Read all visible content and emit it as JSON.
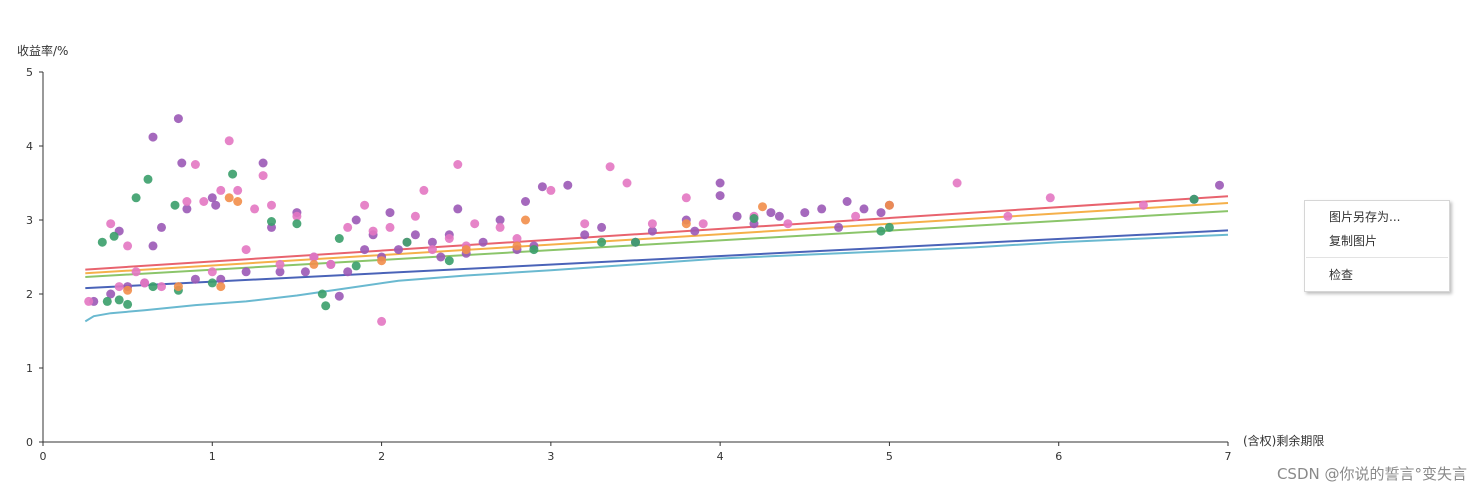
{
  "chart_data": {
    "type": "scatter",
    "ylabel": "收益率/%",
    "xlabel": "(含权)剩余期限",
    "xlim": [
      0,
      7
    ],
    "ylim": [
      0,
      5
    ],
    "x_ticks": [
      "0",
      "1",
      "2",
      "3",
      "4",
      "5",
      "6",
      "7"
    ],
    "y_ticks": [
      "0",
      "1",
      "2",
      "3",
      "4",
      "5"
    ],
    "grid": false,
    "series": [
      {
        "color": "#9b59b6",
        "points": [
          [
            0.3,
            1.9
          ],
          [
            0.4,
            2.0
          ],
          [
            0.45,
            2.85
          ],
          [
            0.5,
            2.1
          ],
          [
            0.6,
            2.15
          ],
          [
            0.65,
            2.65
          ],
          [
            0.65,
            4.12
          ],
          [
            0.7,
            2.9
          ],
          [
            0.8,
            4.37
          ],
          [
            0.82,
            3.77
          ],
          [
            0.85,
            3.15
          ],
          [
            0.9,
            2.2
          ],
          [
            1.0,
            3.3
          ],
          [
            1.02,
            3.2
          ],
          [
            1.05,
            2.2
          ],
          [
            1.2,
            2.3
          ],
          [
            1.3,
            3.77
          ],
          [
            1.35,
            2.9
          ],
          [
            1.4,
            2.3
          ],
          [
            1.5,
            3.1
          ],
          [
            1.55,
            2.3
          ],
          [
            1.6,
            2.5
          ],
          [
            1.7,
            2.4
          ],
          [
            1.75,
            1.97
          ],
          [
            1.8,
            2.3
          ],
          [
            1.85,
            3.0
          ],
          [
            1.9,
            2.6
          ],
          [
            1.95,
            2.8
          ],
          [
            2.0,
            2.5
          ],
          [
            2.05,
            3.1
          ],
          [
            2.1,
            2.6
          ],
          [
            2.2,
            2.8
          ],
          [
            2.3,
            2.7
          ],
          [
            2.35,
            2.5
          ],
          [
            2.4,
            2.8
          ],
          [
            2.45,
            3.15
          ],
          [
            2.5,
            2.55
          ],
          [
            2.6,
            2.7
          ],
          [
            2.7,
            3.0
          ],
          [
            2.8,
            2.6
          ],
          [
            2.85,
            3.25
          ],
          [
            2.9,
            2.65
          ],
          [
            2.95,
            3.45
          ],
          [
            3.1,
            3.47
          ],
          [
            3.2,
            2.8
          ],
          [
            3.3,
            2.9
          ],
          [
            3.5,
            2.7
          ],
          [
            3.6,
            2.85
          ],
          [
            3.8,
            3.0
          ],
          [
            3.85,
            2.85
          ],
          [
            4.0,
            3.5
          ],
          [
            4.0,
            3.33
          ],
          [
            4.1,
            3.05
          ],
          [
            4.2,
            2.95
          ],
          [
            4.3,
            3.1
          ],
          [
            4.35,
            3.05
          ],
          [
            4.5,
            3.1
          ],
          [
            4.6,
            3.15
          ],
          [
            4.7,
            2.9
          ],
          [
            4.75,
            3.25
          ],
          [
            4.85,
            3.15
          ],
          [
            4.95,
            3.1
          ],
          [
            5.0,
            3.2
          ],
          [
            6.8,
            3.28
          ],
          [
            6.95,
            3.47
          ]
        ]
      },
      {
        "color": "#e377c2",
        "points": [
          [
            0.27,
            1.9
          ],
          [
            0.4,
            2.95
          ],
          [
            0.45,
            2.1
          ],
          [
            0.5,
            2.65
          ],
          [
            0.55,
            2.3
          ],
          [
            0.6,
            2.15
          ],
          [
            0.7,
            2.1
          ],
          [
            0.85,
            3.25
          ],
          [
            0.9,
            3.75
          ],
          [
            0.95,
            3.25
          ],
          [
            1.0,
            2.3
          ],
          [
            1.05,
            3.4
          ],
          [
            1.1,
            4.07
          ],
          [
            1.15,
            3.4
          ],
          [
            1.2,
            2.6
          ],
          [
            1.25,
            3.15
          ],
          [
            1.3,
            3.6
          ],
          [
            1.35,
            3.2
          ],
          [
            1.4,
            2.4
          ],
          [
            1.5,
            3.05
          ],
          [
            1.6,
            2.5
          ],
          [
            1.7,
            2.4
          ],
          [
            1.8,
            2.9
          ],
          [
            1.9,
            3.2
          ],
          [
            1.95,
            2.85
          ],
          [
            2.0,
            1.63
          ],
          [
            2.05,
            2.9
          ],
          [
            2.15,
            2.7
          ],
          [
            2.2,
            3.05
          ],
          [
            2.25,
            3.4
          ],
          [
            2.3,
            2.6
          ],
          [
            2.4,
            2.75
          ],
          [
            2.45,
            3.75
          ],
          [
            2.5,
            2.65
          ],
          [
            2.55,
            2.95
          ],
          [
            2.7,
            2.9
          ],
          [
            2.8,
            2.75
          ],
          [
            3.0,
            3.4
          ],
          [
            3.2,
            2.95
          ],
          [
            3.35,
            3.72
          ],
          [
            3.45,
            3.5
          ],
          [
            3.6,
            2.95
          ],
          [
            3.8,
            3.3
          ],
          [
            3.9,
            2.95
          ],
          [
            4.2,
            3.05
          ],
          [
            4.4,
            2.95
          ],
          [
            4.8,
            3.05
          ],
          [
            5.4,
            3.5
          ],
          [
            5.7,
            3.05
          ],
          [
            5.95,
            3.3
          ],
          [
            6.5,
            3.2
          ]
        ]
      },
      {
        "color": "#3a9e6a",
        "points": [
          [
            0.35,
            2.7
          ],
          [
            0.38,
            1.9
          ],
          [
            0.42,
            2.78
          ],
          [
            0.45,
            1.92
          ],
          [
            0.5,
            1.86
          ],
          [
            0.55,
            3.3
          ],
          [
            0.62,
            3.55
          ],
          [
            0.65,
            2.1
          ],
          [
            0.78,
            3.2
          ],
          [
            0.8,
            2.05
          ],
          [
            1.0,
            2.15
          ],
          [
            1.12,
            3.62
          ],
          [
            1.35,
            2.98
          ],
          [
            1.5,
            2.95
          ],
          [
            1.65,
            2.0
          ],
          [
            1.67,
            1.84
          ],
          [
            1.75,
            2.75
          ],
          [
            1.85,
            2.38
          ],
          [
            2.15,
            2.7
          ],
          [
            2.4,
            2.45
          ],
          [
            2.9,
            2.6
          ],
          [
            3.3,
            2.7
          ],
          [
            3.5,
            2.7
          ],
          [
            4.2,
            3.02
          ],
          [
            4.95,
            2.85
          ],
          [
            5.0,
            2.9
          ],
          [
            6.8,
            3.28
          ]
        ]
      },
      {
        "color": "#f28e4a",
        "points": [
          [
            0.5,
            2.05
          ],
          [
            0.8,
            2.1
          ],
          [
            1.05,
            2.1
          ],
          [
            1.1,
            3.3
          ],
          [
            1.15,
            3.25
          ],
          [
            1.6,
            2.4
          ],
          [
            2.0,
            2.45
          ],
          [
            2.5,
            2.6
          ],
          [
            2.8,
            2.65
          ],
          [
            2.85,
            3.0
          ],
          [
            3.8,
            2.95
          ],
          [
            4.25,
            3.18
          ],
          [
            5.0,
            3.2
          ]
        ]
      }
    ],
    "lines": [
      {
        "color": "#e8636e",
        "points": [
          [
            0.25,
            2.33
          ],
          [
            7.0,
            3.32
          ]
        ]
      },
      {
        "color": "#f5b04a",
        "points": [
          [
            0.25,
            2.28
          ],
          [
            7.0,
            3.23
          ]
        ]
      },
      {
        "color": "#8bc56a",
        "points": [
          [
            0.25,
            2.23
          ],
          [
            7.0,
            3.12
          ]
        ]
      },
      {
        "color": "#4a63b8",
        "points": [
          [
            0.25,
            2.08
          ],
          [
            7.0,
            2.86
          ]
        ]
      },
      {
        "color": "#6ab9d0",
        "points": [
          [
            0.25,
            1.63
          ],
          [
            0.3,
            1.7
          ],
          [
            0.4,
            1.74
          ],
          [
            0.6,
            1.78
          ],
          [
            0.9,
            1.85
          ],
          [
            1.2,
            1.9
          ],
          [
            1.5,
            1.98
          ],
          [
            1.8,
            2.08
          ],
          [
            2.1,
            2.18
          ],
          [
            2.5,
            2.25
          ],
          [
            3.0,
            2.32
          ],
          [
            3.5,
            2.4
          ],
          [
            4.0,
            2.48
          ],
          [
            4.5,
            2.53
          ],
          [
            5.0,
            2.58
          ],
          [
            5.5,
            2.63
          ],
          [
            6.0,
            2.7
          ],
          [
            6.5,
            2.75
          ],
          [
            7.0,
            2.8
          ]
        ]
      }
    ]
  },
  "context_menu": {
    "items": [
      "图片另存为...",
      "复制图片",
      "检查"
    ]
  },
  "watermark": "CSDN @你说的誓言°变失言"
}
